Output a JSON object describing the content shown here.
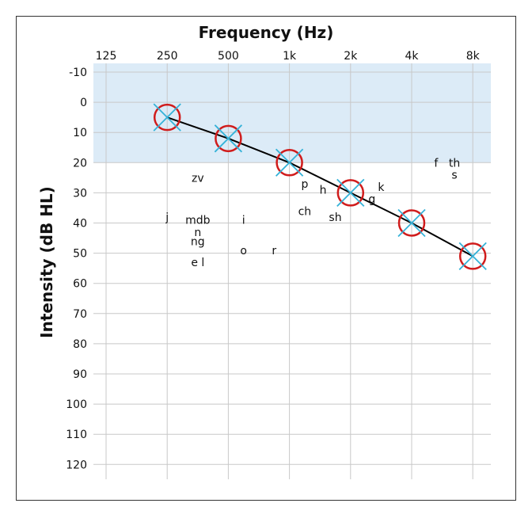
{
  "chart_data": {
    "type": "line",
    "title": "Frequency (Hz)",
    "xlabel": "Frequency (Hz)",
    "ylabel": "Intensity (dB HL)",
    "x_ticks": [
      "125",
      "250",
      "500",
      "1k",
      "2k",
      "4k",
      "8k"
    ],
    "y_ticks": [
      -10,
      0,
      10,
      20,
      30,
      40,
      50,
      60,
      70,
      80,
      90,
      100,
      110,
      120
    ],
    "ylim": [
      -10,
      120
    ],
    "y_inverted": true,
    "normal_range": {
      "from_db": -10,
      "to_db": 20,
      "color": "#dcebf7"
    },
    "grid": true,
    "series": [
      {
        "x": [
          "250",
          "500",
          "1k",
          "2k",
          "4k",
          "8k"
        ],
        "values": [
          5,
          12,
          20,
          30,
          40,
          51
        ],
        "marker": "circle-with-x",
        "circle_color": "#d01c1c",
        "x_color": "#35b2d8",
        "line_color": "#000000"
      }
    ],
    "speech_sounds": [
      {
        "text": "zv",
        "freq_index": 1.5,
        "db": 25
      },
      {
        "text": "j",
        "freq_index": 1.0,
        "db": 38
      },
      {
        "text": "mdb",
        "freq_index": 1.5,
        "db": 39
      },
      {
        "text": "n",
        "freq_index": 1.5,
        "db": 43
      },
      {
        "text": "ng",
        "freq_index": 1.5,
        "db": 46
      },
      {
        "text": "e l",
        "freq_index": 1.5,
        "db": 53
      },
      {
        "text": "i",
        "freq_index": 2.25,
        "db": 39
      },
      {
        "text": "o",
        "freq_index": 2.25,
        "db": 49
      },
      {
        "text": "r",
        "freq_index": 2.75,
        "db": 49
      },
      {
        "text": "p",
        "freq_index": 3.25,
        "db": 27
      },
      {
        "text": "h",
        "freq_index": 3.55,
        "db": 29
      },
      {
        "text": "ch",
        "freq_index": 3.25,
        "db": 36
      },
      {
        "text": "sh",
        "freq_index": 3.75,
        "db": 38
      },
      {
        "text": "g",
        "freq_index": 4.35,
        "db": 32
      },
      {
        "text": "k",
        "freq_index": 4.5,
        "db": 28
      },
      {
        "text": "f",
        "freq_index": 5.4,
        "db": 20
      },
      {
        "text": "th",
        "freq_index": 5.7,
        "db": 20
      },
      {
        "text": "s",
        "freq_index": 5.7,
        "db": 24
      }
    ]
  }
}
